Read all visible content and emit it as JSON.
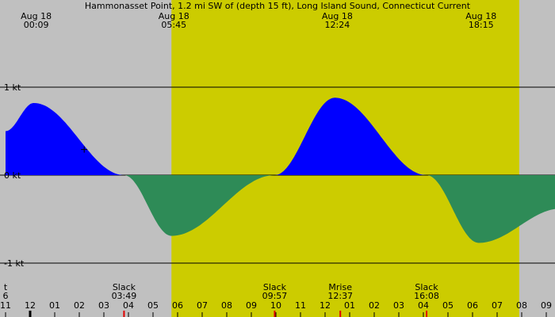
{
  "title": "Hammonasset Point, 1.2 mi SW of (depth 15 ft), Long Island Sound, Connecticut Current",
  "colors": {
    "background": "#c0c0c0",
    "daylight": "#cccc00",
    "flood": "#0000ff",
    "ebb": "#2e8b57",
    "gridline": "#000000"
  },
  "top_labels": [
    {
      "date": "Aug 18",
      "time": "00:09",
      "hour": 0.15
    },
    {
      "date": "Aug 18",
      "time": "05:45",
      "hour": 5.75
    },
    {
      "date": "Aug 18",
      "time": "12:24",
      "hour": 12.4
    },
    {
      "date": "Aug 18",
      "time": "18:15",
      "hour": 18.25
    }
  ],
  "bottom_events": [
    {
      "label": "t",
      "time": "6",
      "hour": -1.0
    },
    {
      "label": "Slack",
      "time": "03:49",
      "hour": 3.82
    },
    {
      "label": "Slack",
      "time": "09:57",
      "hour": 9.95
    },
    {
      "label": "Mrise",
      "time": "12:37",
      "hour": 12.62
    },
    {
      "label": "Slack",
      "time": "16:08",
      "hour": 16.13
    }
  ],
  "chart_data": {
    "type": "area",
    "ylabels": [
      "1 kt",
      "0 kt",
      "-1 kt"
    ],
    "ylim": [
      -1,
      1
    ],
    "xlim_hours": [
      -1.0,
      21.6
    ],
    "daylight_hours": [
      5.75,
      19.9
    ],
    "x_ticks": [
      {
        "label": "11",
        "hour": -1
      },
      {
        "label": "12",
        "hour": 0
      },
      {
        "label": "01",
        "hour": 1
      },
      {
        "label": "02",
        "hour": 2
      },
      {
        "label": "03",
        "hour": 3
      },
      {
        "label": "04",
        "hour": 4
      },
      {
        "label": "05",
        "hour": 5
      },
      {
        "label": "06",
        "hour": 6
      },
      {
        "label": "07",
        "hour": 7
      },
      {
        "label": "08",
        "hour": 8
      },
      {
        "label": "09",
        "hour": 9
      },
      {
        "label": "10",
        "hour": 10
      },
      {
        "label": "11",
        "hour": 11
      },
      {
        "label": "12",
        "hour": 12
      },
      {
        "label": "01",
        "hour": 13
      },
      {
        "label": "02",
        "hour": 14
      },
      {
        "label": "03",
        "hour": 15
      },
      {
        "label": "04",
        "hour": 16
      },
      {
        "label": "05",
        "hour": 17
      },
      {
        "label": "06",
        "hour": 18
      },
      {
        "label": "07",
        "hour": 19
      },
      {
        "label": "08",
        "hour": 20
      },
      {
        "label": "09",
        "hour": 21
      }
    ],
    "extrema": [
      {
        "hour": 0.15,
        "kt": 0.82
      },
      {
        "hour": 5.75,
        "kt": -0.69
      },
      {
        "hour": 12.4,
        "kt": 0.88
      },
      {
        "hour": 18.25,
        "kt": -0.77
      }
    ],
    "slacks_hours": [
      3.82,
      9.95,
      16.13
    ],
    "current_hour": 2.2,
    "series": [
      {
        "x_hours": [
          -1.0,
          0.15,
          3.82,
          5.75,
          9.95,
          12.4,
          16.13,
          18.25,
          21.6
        ],
        "y_kt": [
          0.5,
          0.82,
          0.0,
          -0.69,
          0.0,
          0.88,
          0.0,
          -0.77,
          -0.38
        ]
      }
    ]
  }
}
